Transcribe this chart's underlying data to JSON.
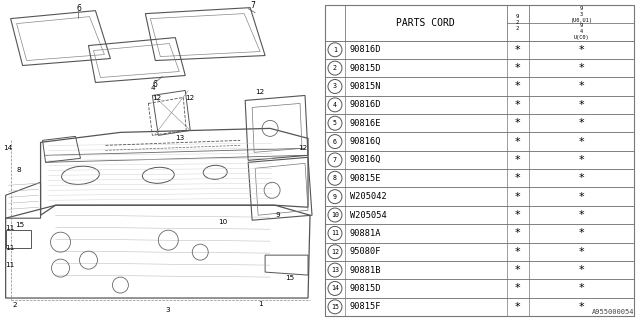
{
  "diagram_id": "A955000054",
  "table_header": "PARTS CORD",
  "col_header_a": "9\n2\n2",
  "col_header_b_top": "9\n3\n(U0,U1)",
  "col_header_b_bot": "9\n4\nU(C0)",
  "parts": [
    {
      "num": 1,
      "code": "90816D"
    },
    {
      "num": 2,
      "code": "90815D"
    },
    {
      "num": 3,
      "code": "90815N"
    },
    {
      "num": 4,
      "code": "90816D"
    },
    {
      "num": 5,
      "code": "90816E"
    },
    {
      "num": 6,
      "code": "90816Q"
    },
    {
      "num": 7,
      "code": "90816Q"
    },
    {
      "num": 8,
      "code": "90815E"
    },
    {
      "num": 9,
      "code": "W205042"
    },
    {
      "num": 10,
      "code": "W205054"
    },
    {
      "num": 11,
      "code": "90881A"
    },
    {
      "num": 12,
      "code": "95080F"
    },
    {
      "num": 13,
      "code": "90881B"
    },
    {
      "num": 14,
      "code": "90815D"
    },
    {
      "num": 15,
      "code": "90815F"
    }
  ],
  "bg": "#ffffff",
  "lc": "#555555",
  "tc": "#000000"
}
